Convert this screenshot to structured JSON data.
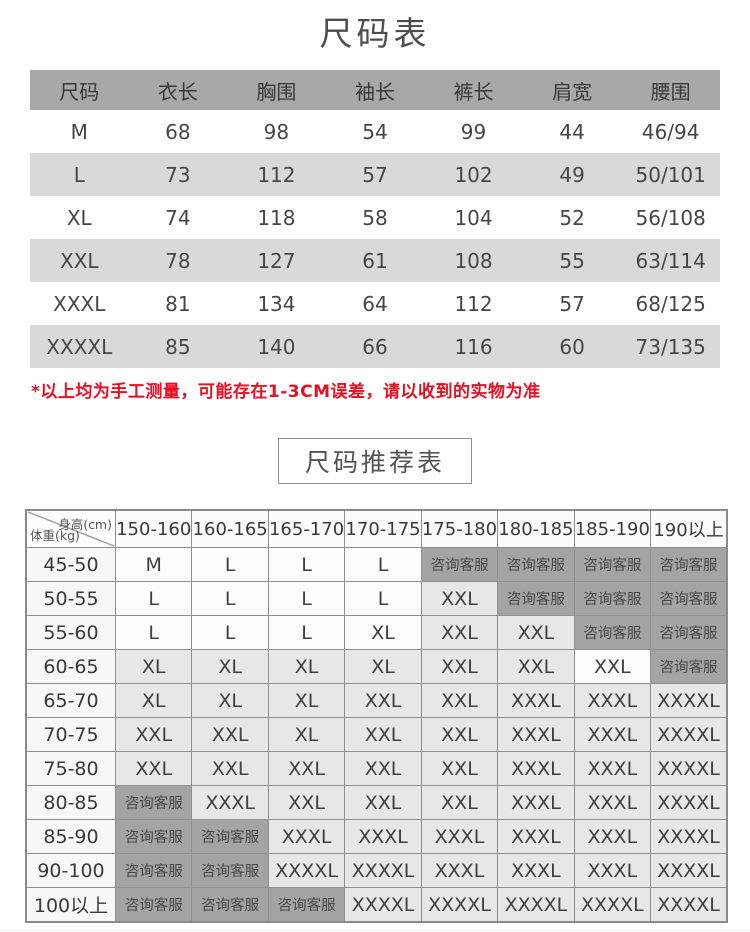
{
  "size_table": {
    "title": "尺码表",
    "headers": [
      "尺码",
      "衣长",
      "胸围",
      "袖长",
      "裤长",
      "肩宽",
      "腰围"
    ],
    "rows": [
      [
        "M",
        "68",
        "98",
        "54",
        "99",
        "44",
        "46/94"
      ],
      [
        "L",
        "73",
        "112",
        "57",
        "102",
        "49",
        "50/101"
      ],
      [
        "XL",
        "74",
        "118",
        "58",
        "104",
        "52",
        "56/108"
      ],
      [
        "XXL",
        "78",
        "127",
        "61",
        "108",
        "55",
        "63/114"
      ],
      [
        "XXXL",
        "81",
        "134",
        "64",
        "112",
        "57",
        "68/125"
      ],
      [
        "XXXXL",
        "85",
        "140",
        "66",
        "116",
        "60",
        "73/135"
      ]
    ]
  },
  "note_text": "*以上均为手工测量，可能存在1-3CM误差，请以收到的实物为准",
  "recommend_table": {
    "title": "尺码推荐表",
    "corner_top": "身高(cm)",
    "corner_bottom": "体重(kg)",
    "consult_label": "咨询客服",
    "height_headers": [
      "150-160",
      "160-165",
      "165-170",
      "170-175",
      "175-180",
      "180-185",
      "185-190",
      "190以上"
    ],
    "rows": [
      {
        "weight": "45-50",
        "cells": [
          [
            "M",
            "w"
          ],
          [
            "L",
            "w"
          ],
          [
            "L",
            "w"
          ],
          [
            "L",
            "w"
          ],
          [
            "咨询客服",
            "d"
          ],
          [
            "咨询客服",
            "d"
          ],
          [
            "咨询客服",
            "d"
          ],
          [
            "咨询客服",
            "d"
          ]
        ]
      },
      {
        "weight": "50-55",
        "cells": [
          [
            "L",
            "w"
          ],
          [
            "L",
            "w"
          ],
          [
            "L",
            "w"
          ],
          [
            "L",
            "w"
          ],
          [
            "XXL",
            "l"
          ],
          [
            "咨询客服",
            "d"
          ],
          [
            "咨询客服",
            "d"
          ],
          [
            "咨询客服",
            "d"
          ]
        ]
      },
      {
        "weight": "55-60",
        "cells": [
          [
            "L",
            "w"
          ],
          [
            "L",
            "w"
          ],
          [
            "L",
            "w"
          ],
          [
            "XL",
            "w"
          ],
          [
            "XXL",
            "l"
          ],
          [
            "XXL",
            "l"
          ],
          [
            "咨询客服",
            "d"
          ],
          [
            "咨询客服",
            "d"
          ]
        ]
      },
      {
        "weight": "60-65",
        "cells": [
          [
            "XL",
            "l"
          ],
          [
            "XL",
            "l"
          ],
          [
            "XL",
            "l"
          ],
          [
            "XL",
            "l"
          ],
          [
            "XXL",
            "l"
          ],
          [
            "XXL",
            "l"
          ],
          [
            "XXL",
            "w"
          ],
          [
            "咨询客服",
            "d"
          ]
        ]
      },
      {
        "weight": "65-70",
        "cells": [
          [
            "XL",
            "l"
          ],
          [
            "XL",
            "l"
          ],
          [
            "XL",
            "l"
          ],
          [
            "XXL",
            "l"
          ],
          [
            "XXL",
            "l"
          ],
          [
            "XXXL",
            "l"
          ],
          [
            "XXXL",
            "l"
          ],
          [
            "XXXXL",
            "l"
          ]
        ]
      },
      {
        "weight": "70-75",
        "cells": [
          [
            "XXL",
            "l"
          ],
          [
            "XXL",
            "l"
          ],
          [
            "XL",
            "l"
          ],
          [
            "XXL",
            "l"
          ],
          [
            "XXL",
            "l"
          ],
          [
            "XXXL",
            "l"
          ],
          [
            "XXXL",
            "l"
          ],
          [
            "XXXXL",
            "l"
          ]
        ]
      },
      {
        "weight": "75-80",
        "cells": [
          [
            "XXL",
            "l"
          ],
          [
            "XXL",
            "l"
          ],
          [
            "XXL",
            "l"
          ],
          [
            "XXL",
            "l"
          ],
          [
            "XXL",
            "l"
          ],
          [
            "XXXL",
            "l"
          ],
          [
            "XXXL",
            "l"
          ],
          [
            "XXXXL",
            "l"
          ]
        ]
      },
      {
        "weight": "80-85",
        "cells": [
          [
            "咨询客服",
            "d"
          ],
          [
            "XXXL",
            "l"
          ],
          [
            "XXL",
            "l"
          ],
          [
            "XXL",
            "l"
          ],
          [
            "XXL",
            "l"
          ],
          [
            "XXXL",
            "l"
          ],
          [
            "XXXL",
            "l"
          ],
          [
            "XXXXL",
            "l"
          ]
        ]
      },
      {
        "weight": "85-90",
        "cells": [
          [
            "咨询客服",
            "d"
          ],
          [
            "咨询客服",
            "d"
          ],
          [
            "XXXL",
            "l"
          ],
          [
            "XXXL",
            "l"
          ],
          [
            "XXXL",
            "l"
          ],
          [
            "XXXL",
            "l"
          ],
          [
            "XXXL",
            "l"
          ],
          [
            "XXXXL",
            "l"
          ]
        ]
      },
      {
        "weight": "90-100",
        "cells": [
          [
            "咨询客服",
            "d"
          ],
          [
            "咨询客服",
            "d"
          ],
          [
            "XXXXL",
            "l"
          ],
          [
            "XXXXL",
            "l"
          ],
          [
            "XXXL",
            "l"
          ],
          [
            "XXXL",
            "l"
          ],
          [
            "XXXL",
            "l"
          ],
          [
            "XXXXL",
            "l"
          ]
        ]
      },
      {
        "weight": "100以上",
        "cells": [
          [
            "咨询客服",
            "d"
          ],
          [
            "咨询客服",
            "d"
          ],
          [
            "咨询客服",
            "d"
          ],
          [
            "XXXXL",
            "l"
          ],
          [
            "XXXXL",
            "l"
          ],
          [
            "XXXXL",
            "l"
          ],
          [
            "XXXXL",
            "l"
          ],
          [
            "XXXXL",
            "l"
          ]
        ]
      }
    ]
  },
  "colors": {
    "table1_header_gray": "#a8a8a8",
    "table1_alt_row_gray": "#d9d9d9",
    "cell_light_gray": "#e7e7e7",
    "cell_dark_gray": "#a4a4a4",
    "note_red": "#e60f21",
    "border_gray": "#8f8f8f"
  }
}
